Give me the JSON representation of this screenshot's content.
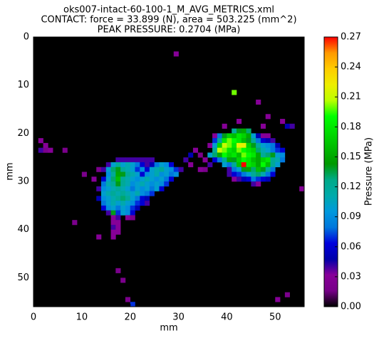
{
  "chart_data": {
    "type": "heatmap",
    "title": [
      "oks007-intact-60-100-1_M_AVG_METRICS.xml",
      "CONTACT: force = 33.899 (N), area = 503.225 (mm^2)",
      "PEAK PRESSURE: 0.2704 (MPa)"
    ],
    "x_label": "mm",
    "y_label": "mm",
    "colorbar_label": "Pressure (MPa)",
    "xlim": [
      0,
      56
    ],
    "ylim": [
      56,
      0
    ],
    "xticks": [
      0,
      10,
      20,
      30,
      40,
      50
    ],
    "yticks": [
      0,
      10,
      20,
      30,
      40,
      50
    ],
    "zlim": [
      0,
      0.27
    ],
    "zticks": [
      {
        "value": 0,
        "label": "0.00"
      },
      0.03,
      0.06,
      0.09,
      0.12,
      0.15,
      0.18,
      0.21,
      0.24,
      0.27
    ],
    "background": "#000000",
    "colormap": [
      "#000000",
      "#770088",
      "#880099",
      "#0000aa",
      "#0000dd",
      "#0077dd",
      "#0099dd",
      "#00aaaa",
      "#00aa88",
      "#009900",
      "#00bb00",
      "#00dd00",
      "#00ff00",
      "#bbff00",
      "#eeee00",
      "#ffcc00",
      "#ff9900",
      "#ff0000"
    ],
    "rows": [
      {
        "y": 3,
        "x": [
          29
        ],
        "values": [
          0.03
        ]
      },
      {
        "y": 11,
        "x": [
          41
        ],
        "values": [
          0.2
        ]
      },
      {
        "y": 13,
        "x": [
          46
        ],
        "values": [
          0.03
        ]
      },
      {
        "y": 16,
        "x": [
          48
        ],
        "values": [
          0.03
        ]
      },
      {
        "y": 17,
        "x": [
          42,
          51
        ],
        "values": [
          0.03,
          0.03
        ]
      },
      {
        "y": 18,
        "x": [
          39,
          47,
          52,
          53
        ],
        "values": [
          0.03,
          0.03,
          0.05,
          0.04
        ]
      },
      {
        "y": 19,
        "x": [
          41,
          42,
          43,
          44
        ],
        "values": [
          0.12,
          0.14,
          0.15,
          0.13
        ]
      },
      {
        "y": 20,
        "x": [
          37,
          38,
          39,
          40,
          41,
          42,
          43,
          44,
          45,
          46,
          47,
          48
        ],
        "values": [
          0.03,
          0.08,
          0.14,
          0.17,
          0.16,
          0.18,
          0.17,
          0.15,
          0.1,
          0.05,
          0.03,
          0.03
        ]
      },
      {
        "y": 21,
        "x": [
          1,
          37,
          38,
          39,
          40,
          41,
          42,
          43,
          44,
          45,
          46,
          47,
          48,
          49
        ],
        "values": [
          0.03,
          0.07,
          0.12,
          0.18,
          0.2,
          0.19,
          0.18,
          0.16,
          0.14,
          0.12,
          0.08,
          0.06,
          0.05,
          0.04
        ]
      },
      {
        "y": 22,
        "x": [
          2,
          36,
          37,
          38,
          39,
          40,
          41,
          42,
          43,
          44,
          45,
          46,
          47,
          48,
          49,
          50
        ],
        "values": [
          0.03,
          0.03,
          0.1,
          0.17,
          0.21,
          0.2,
          0.18,
          0.22,
          0.22,
          0.17,
          0.14,
          0.12,
          0.1,
          0.09,
          0.08,
          0.05
        ]
      },
      {
        "y": 23,
        "x": [
          1,
          2,
          3,
          6,
          33,
          37,
          38,
          39,
          40,
          41,
          42,
          43,
          44,
          45,
          46,
          47,
          48,
          49,
          50,
          51
        ],
        "values": [
          0.04,
          0.02,
          0.03,
          0.02,
          0.03,
          0.12,
          0.21,
          0.2,
          0.18,
          0.17,
          0.2,
          0.19,
          0.18,
          0.17,
          0.13,
          0.11,
          0.1,
          0.08,
          0.07,
          0.06
        ]
      },
      {
        "y": 24,
        "x": [
          32,
          34,
          36,
          37,
          38,
          39,
          40,
          41,
          42,
          43,
          44,
          45,
          46,
          47,
          48,
          49,
          50,
          51
        ],
        "values": [
          0.05,
          0.02,
          0.1,
          0.13,
          0.15,
          0.19,
          0.17,
          0.18,
          0.16,
          0.2,
          0.19,
          0.18,
          0.15,
          0.12,
          0.13,
          0.14,
          0.1,
          0.09
        ]
      },
      {
        "y": 25,
        "x": [
          17,
          18,
          19,
          20,
          21,
          22,
          23,
          24,
          31,
          35,
          37,
          38,
          39,
          40,
          41,
          42,
          43,
          44,
          45,
          46,
          47,
          48,
          49,
          50,
          51
        ],
        "values": [
          0.04,
          0.04,
          0.04,
          0.04,
          0.04,
          0.04,
          0.04,
          0.04,
          0.04,
          0.03,
          0.06,
          0.08,
          0.12,
          0.15,
          0.14,
          0.17,
          0.19,
          0.18,
          0.16,
          0.15,
          0.17,
          0.18,
          0.12,
          0.11,
          0.08
        ]
      },
      {
        "y": 26,
        "x": [
          15,
          16,
          17,
          18,
          19,
          20,
          21,
          22,
          23,
          24,
          25,
          26,
          27,
          28,
          32,
          36,
          39,
          40,
          41,
          42,
          43,
          44,
          45,
          46,
          47,
          48,
          49,
          50
        ],
        "values": [
          0.04,
          0.1,
          0.12,
          0.1,
          0.11,
          0.1,
          0.08,
          0.06,
          0.04,
          0.05,
          0.08,
          0.1,
          0.09,
          0.06,
          0.03,
          0.04,
          0.1,
          0.08,
          0.12,
          0.16,
          0.2704,
          0.18,
          0.17,
          0.15,
          0.19,
          0.16,
          0.12,
          0.1
        ]
      },
      {
        "y": 27,
        "x": [
          13,
          14,
          15,
          16,
          17,
          18,
          19,
          20,
          21,
          22,
          23,
          24,
          25,
          26,
          27,
          28,
          29,
          30,
          34,
          35,
          40,
          41,
          42,
          43,
          44,
          45,
          46,
          47,
          48,
          49
        ],
        "values": [
          0.02,
          0.04,
          0.1,
          0.13,
          0.14,
          0.12,
          0.11,
          0.1,
          0.07,
          0.09,
          0.06,
          0.1,
          0.11,
          0.12,
          0.1,
          0.09,
          0.07,
          0.04,
          0.03,
          0.02,
          0.04,
          0.08,
          0.1,
          0.14,
          0.15,
          0.13,
          0.16,
          0.14,
          0.12,
          0.08
        ]
      },
      {
        "y": 28,
        "x": [
          10,
          15,
          16,
          17,
          18,
          19,
          20,
          21,
          22,
          23,
          24,
          25,
          26,
          27,
          28,
          29,
          40,
          41,
          42,
          43,
          44,
          45,
          46,
          47,
          48,
          49
        ],
        "values": [
          0.02,
          0.09,
          0.12,
          0.15,
          0.14,
          0.12,
          0.11,
          0.1,
          0.06,
          0.09,
          0.1,
          0.11,
          0.09,
          0.1,
          0.08,
          0.09,
          0.04,
          0.06,
          0.07,
          0.08,
          0.1,
          0.12,
          0.13,
          0.11,
          0.08,
          0.06
        ]
      },
      {
        "y": 29,
        "x": [
          12,
          14,
          15,
          16,
          17,
          18,
          19,
          20,
          21,
          22,
          23,
          24,
          25,
          26,
          27,
          28,
          41,
          42,
          43,
          44,
          45,
          46,
          47,
          48
        ],
        "values": [
          0.03,
          0.06,
          0.1,
          0.13,
          0.16,
          0.12,
          0.11,
          0.1,
          0.09,
          0.1,
          0.11,
          0.1,
          0.09,
          0.1,
          0.08,
          0.06,
          0.03,
          0.04,
          0.05,
          0.06,
          0.08,
          0.07,
          0.06,
          0.05
        ]
      },
      {
        "y": 30,
        "x": [
          14,
          15,
          16,
          17,
          18,
          19,
          20,
          21,
          22,
          23,
          24,
          25,
          26,
          27,
          45,
          46
        ],
        "values": [
          0.08,
          0.11,
          0.12,
          0.14,
          0.12,
          0.11,
          0.09,
          0.1,
          0.11,
          0.1,
          0.09,
          0.1,
          0.09,
          0.07,
          0.04,
          0.03
        ]
      },
      {
        "y": 31,
        "x": [
          13,
          14,
          15,
          16,
          17,
          18,
          19,
          20,
          21,
          22,
          23,
          24,
          25,
          26,
          55
        ],
        "values": [
          0.04,
          0.09,
          0.1,
          0.11,
          0.12,
          0.11,
          0.1,
          0.08,
          0.1,
          0.09,
          0.1,
          0.08,
          0.1,
          0.06,
          0.03
        ]
      },
      {
        "y": 32,
        "x": [
          14,
          15,
          16,
          17,
          18,
          19,
          20,
          21,
          22,
          23,
          24
        ],
        "values": [
          0.1,
          0.11,
          0.12,
          0.11,
          0.12,
          0.11,
          0.1,
          0.11,
          0.09,
          0.08,
          0.07
        ]
      },
      {
        "y": 33,
        "x": [
          13,
          14,
          15,
          16,
          17,
          18,
          19,
          20,
          21,
          22,
          23
        ],
        "values": [
          0.05,
          0.09,
          0.1,
          0.11,
          0.12,
          0.13,
          0.12,
          0.1,
          0.08,
          0.06,
          0.05
        ]
      },
      {
        "y": 34,
        "x": [
          14,
          15,
          16,
          17,
          18,
          19,
          20,
          21,
          22,
          23
        ],
        "values": [
          0.08,
          0.1,
          0.11,
          0.1,
          0.11,
          0.1,
          0.09,
          0.07,
          0.06,
          0.04
        ]
      },
      {
        "y": 35,
        "x": [
          14,
          15,
          16,
          17,
          18,
          19,
          20,
          21
        ],
        "values": [
          0.06,
          0.09,
          0.1,
          0.08,
          0.1,
          0.09,
          0.07,
          0.05
        ]
      },
      {
        "y": 36,
        "x": [
          15,
          16,
          17,
          18,
          19,
          20
        ],
        "values": [
          0.04,
          0.14,
          0.07,
          0.1,
          0.09,
          0.06
        ]
      },
      {
        "y": 37,
        "x": [
          16,
          17,
          19,
          20
        ],
        "values": [
          0.03,
          0.04,
          0.03,
          0.02
        ]
      },
      {
        "y": 38,
        "x": [
          8,
          16,
          17
        ],
        "values": [
          0.02,
          0.03,
          0.03
        ]
      },
      {
        "y": 39,
        "x": [
          16,
          17
        ],
        "values": [
          0.04,
          0.03
        ]
      },
      {
        "y": 40,
        "x": [
          16,
          17
        ],
        "values": [
          0.03,
          0.03
        ]
      },
      {
        "y": 41,
        "x": [
          13,
          16
        ],
        "values": [
          0.03,
          0.03
        ]
      },
      {
        "y": 48,
        "x": [
          17
        ],
        "values": [
          0.02
        ]
      },
      {
        "y": 50,
        "x": [
          18
        ],
        "values": [
          0.02
        ]
      },
      {
        "y": 53,
        "x": [
          52
        ],
        "values": [
          0.02
        ]
      },
      {
        "y": 54,
        "x": [
          19,
          50
        ],
        "values": [
          0.02,
          0.03
        ]
      },
      {
        "y": 55,
        "x": [
          20
        ],
        "values": [
          0.07
        ]
      }
    ]
  }
}
